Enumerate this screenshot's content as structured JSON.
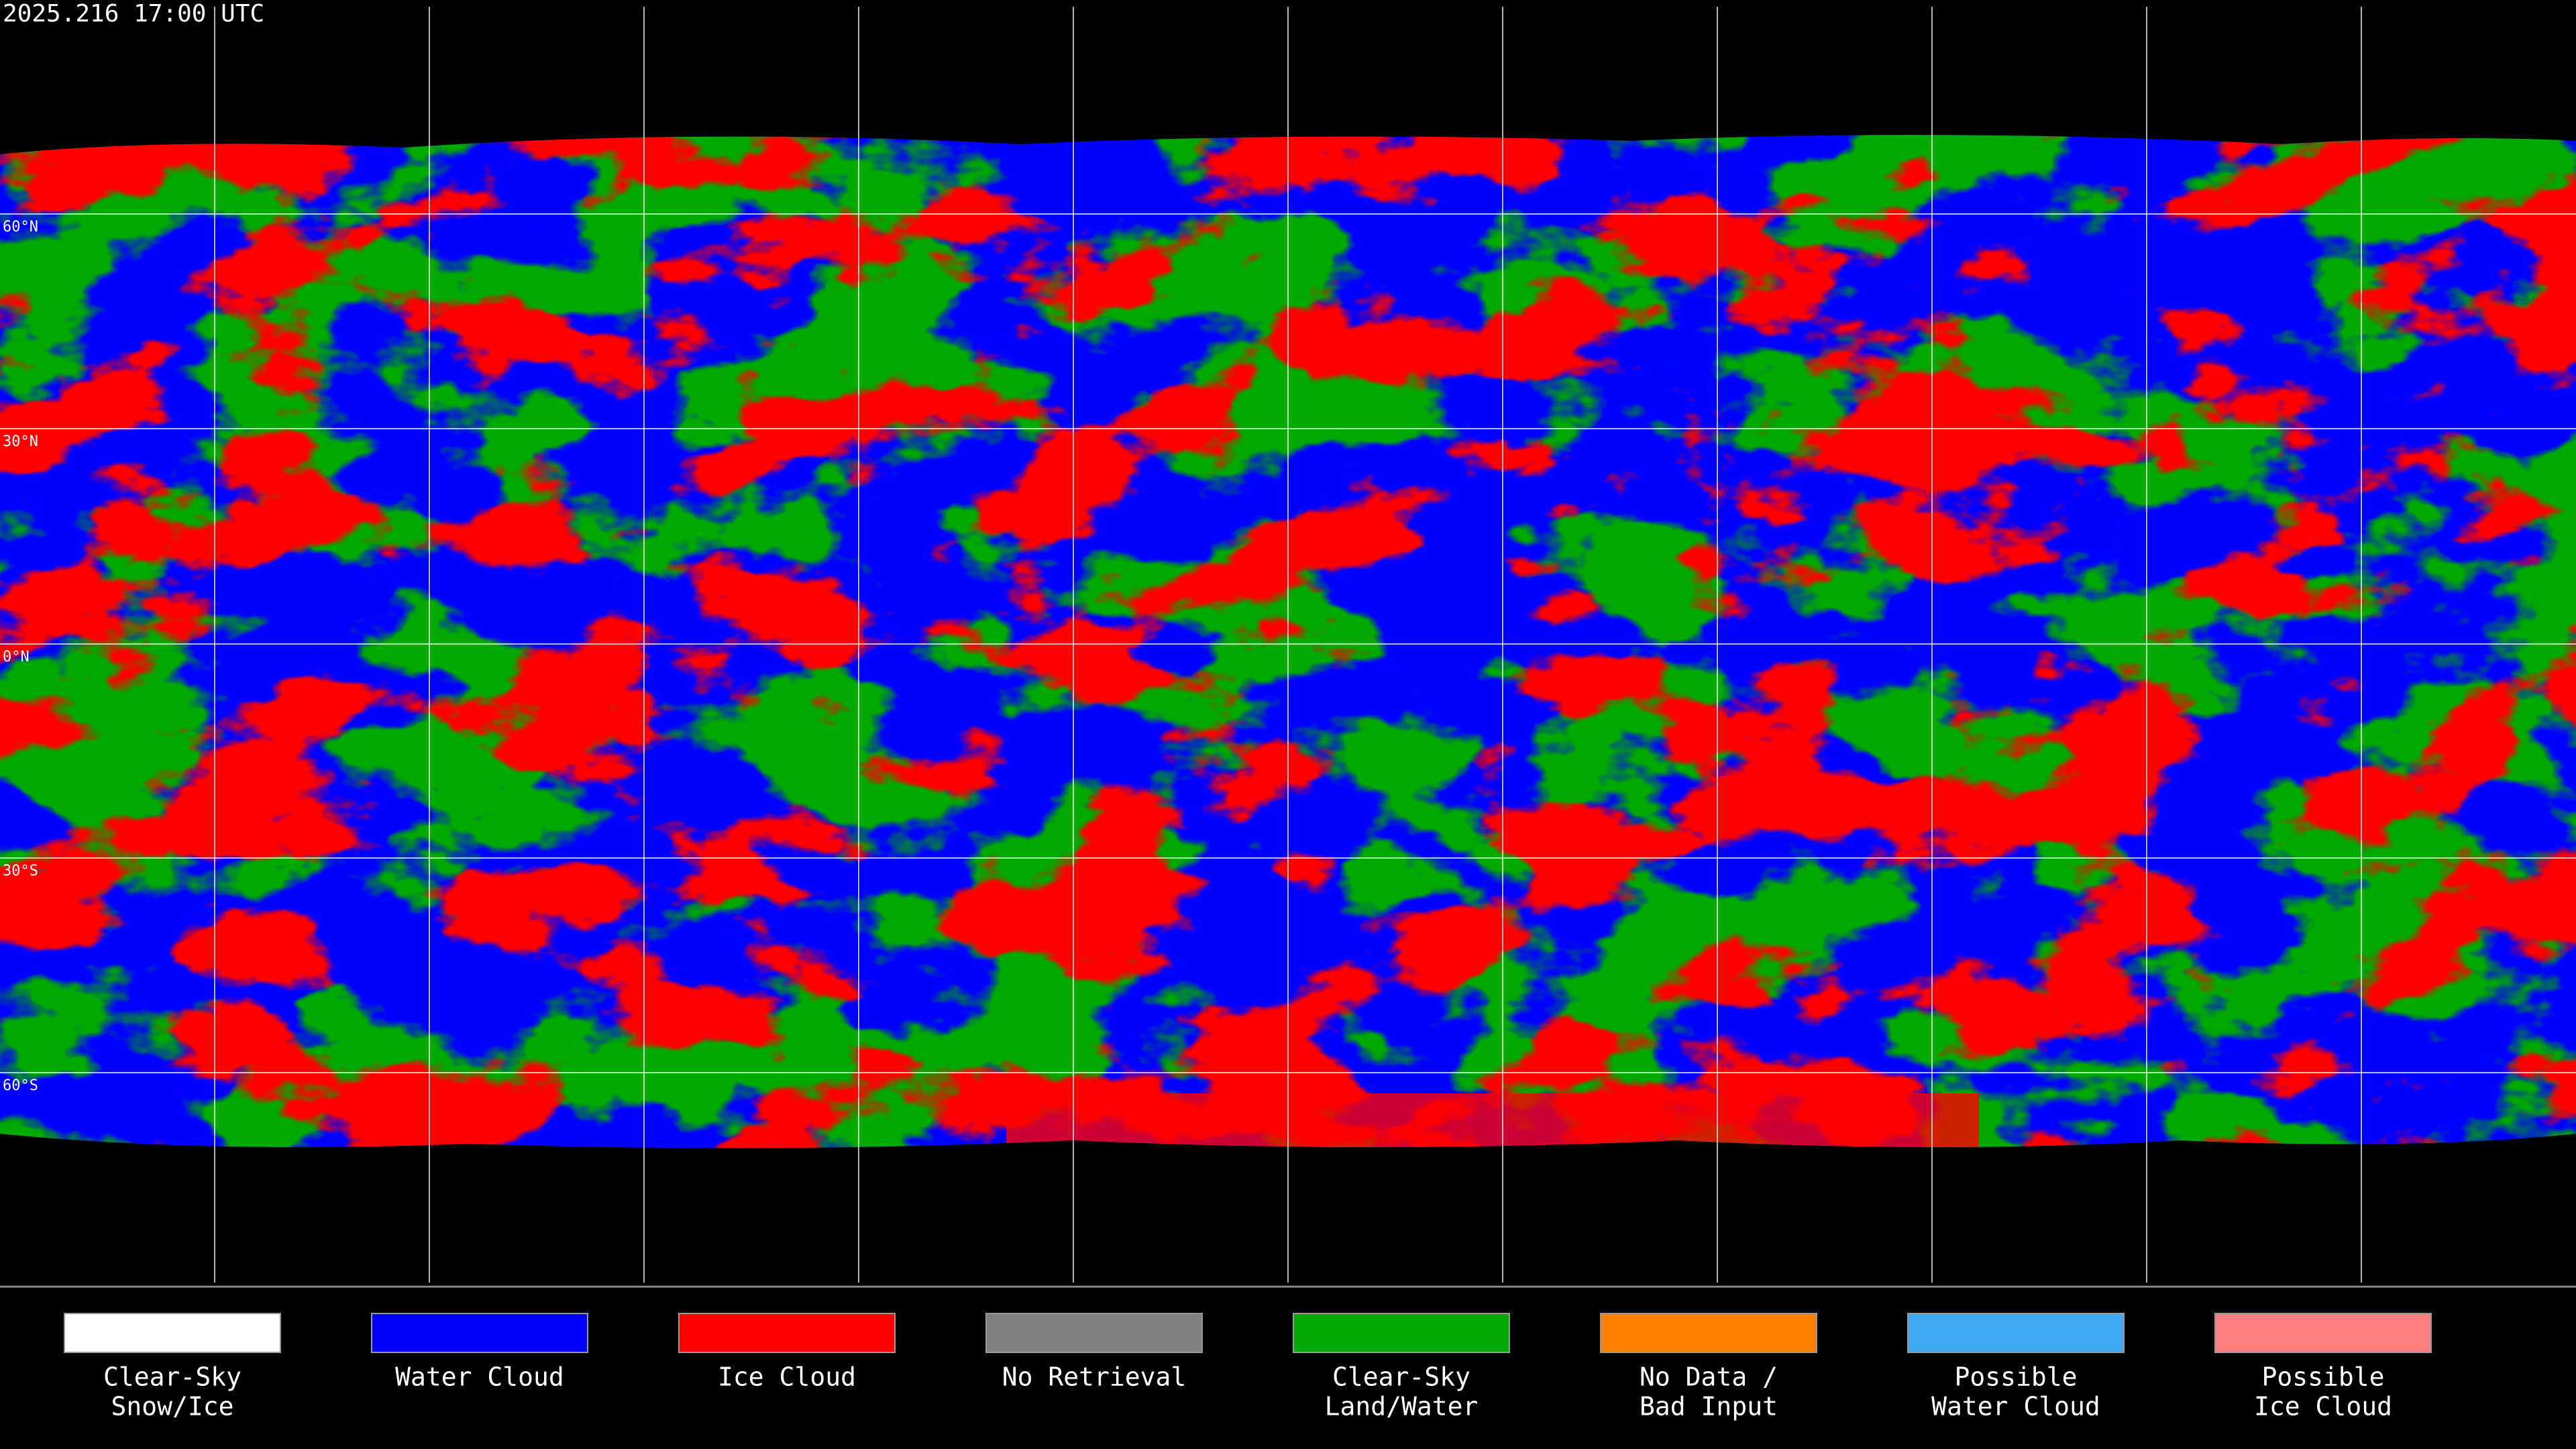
{
  "timestamp": "2025.216 17:00 UTC",
  "latitude_labels": [
    "60°N",
    "30°N",
    "0°N",
    "30°S",
    "60°S"
  ],
  "legend": {
    "items": [
      {
        "lines": [
          "Clear-Sky",
          "Snow/Ice"
        ],
        "color": "#ffffff"
      },
      {
        "lines": [
          "Water Cloud"
        ],
        "color": "#0000ff"
      },
      {
        "lines": [
          "Ice Cloud"
        ],
        "color": "#ff0000"
      },
      {
        "lines": [
          "No Retrieval"
        ],
        "color": "#808080"
      },
      {
        "lines": [
          "Clear-Sky",
          "Land/Water"
        ],
        "color": "#00aa00"
      },
      {
        "lines": [
          "No Data /",
          "Bad Input"
        ],
        "color": "#ff7f00"
      },
      {
        "lines": [
          "Possible",
          "Water Cloud"
        ],
        "color": "#3fa9f5"
      },
      {
        "lines": [
          "Possible",
          "Ice Cloud"
        ],
        "color": "#ff7f7f"
      }
    ]
  }
}
